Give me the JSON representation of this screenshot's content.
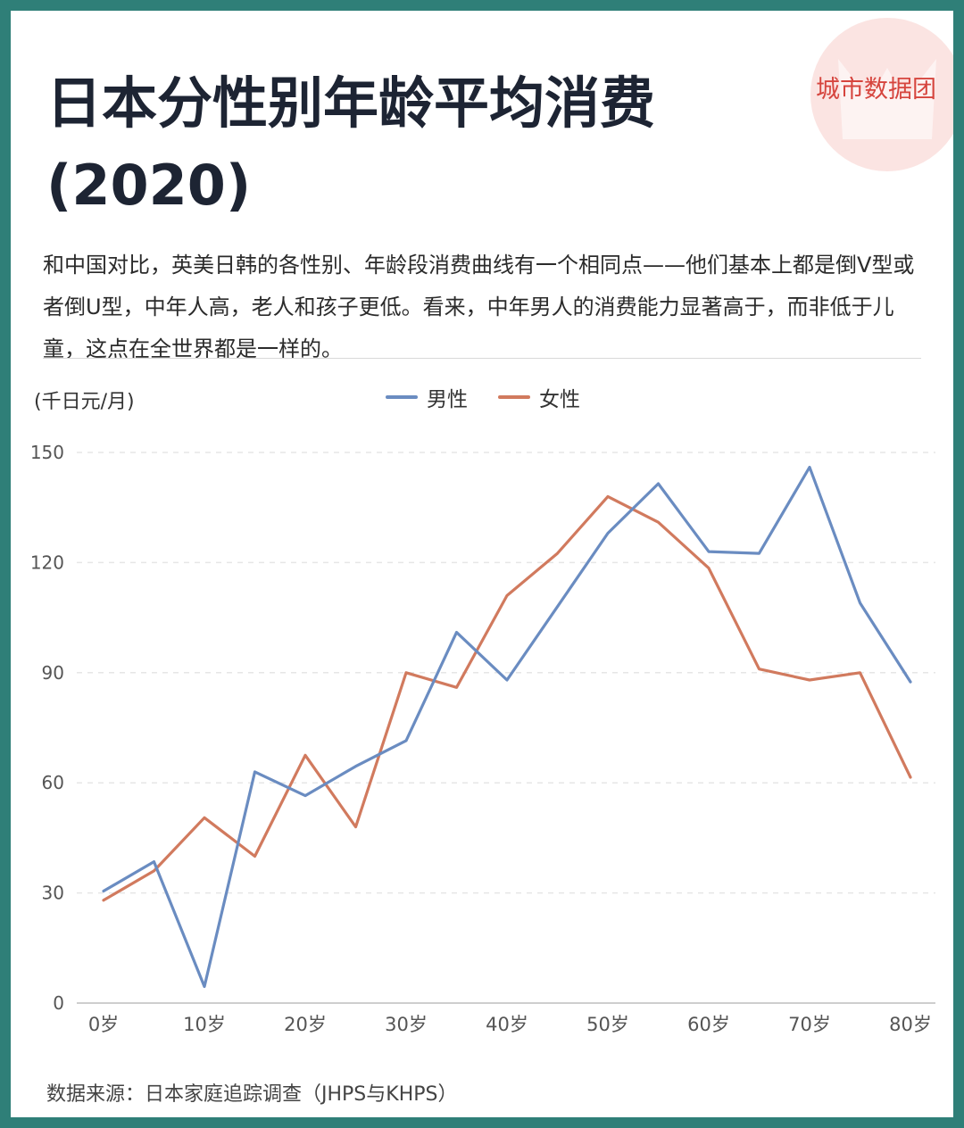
{
  "header": {
    "title_line1": "日本分性别年龄平均消费",
    "title_line2": "(2020)",
    "brand": "城市数据团"
  },
  "description": "和中国对比，英美日韩的各性别、年龄段消费曲线有一个相同点——他们基本上都是倒V型或者倒U型，中年人高，老人和孩子更低。看来，中年男人的消费能力显著高于，而非低于儿童，这点在全世界都是一样的。",
  "colors": {
    "male": "#6a8cc1",
    "female": "#d17a5e",
    "grid": "#e6e6e6",
    "brand": "#d6453e"
  },
  "chart_data": {
    "type": "line",
    "ylabel": "(千日元/月)",
    "ylim": [
      0,
      150
    ],
    "yticks": [
      0,
      30,
      60,
      90,
      120,
      150
    ],
    "x": [
      0,
      5,
      10,
      15,
      20,
      25,
      30,
      35,
      40,
      45,
      50,
      55,
      60,
      65,
      70,
      75,
      80
    ],
    "xtick_labels": [
      "0岁",
      "10岁",
      "20岁",
      "30岁",
      "40岁",
      "50岁",
      "60岁",
      "70岁",
      "80岁"
    ],
    "xtick_values": [
      0,
      10,
      20,
      30,
      40,
      50,
      60,
      70,
      80
    ],
    "legend_position": "top-center",
    "grid": true,
    "series": [
      {
        "name": "男性",
        "color": "#6a8cc1",
        "values": [
          30.5,
          38.5,
          4.5,
          63,
          56.5,
          64.5,
          71.5,
          101,
          88,
          108,
          128,
          141.5,
          123,
          122.5,
          146,
          109,
          87.5
        ]
      },
      {
        "name": "女性",
        "color": "#d17a5e",
        "values": [
          28,
          36,
          50.5,
          40,
          67.5,
          48,
          90,
          86,
          111,
          122.5,
          138,
          131,
          118.5,
          91,
          88,
          90,
          61.5
        ]
      }
    ]
  },
  "footer": {
    "source": "数据来源：日本家庭追踪调查（JHPS与KHPS）"
  }
}
